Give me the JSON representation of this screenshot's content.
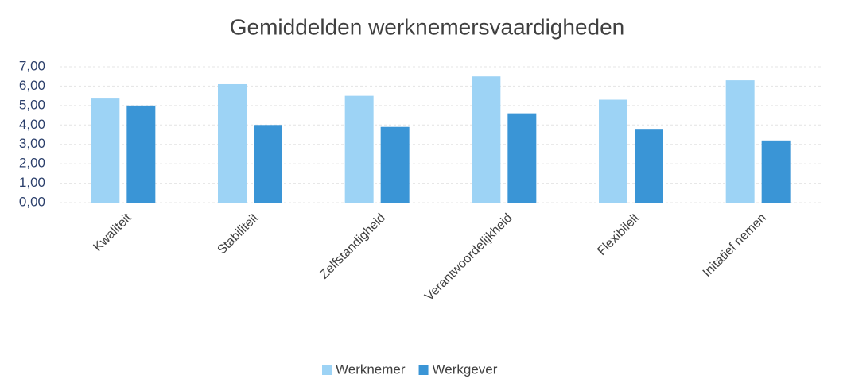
{
  "chart_data": {
    "type": "bar",
    "title": "Gemiddelden werknemersvaardigheden",
    "categories": [
      "Kwaliteit",
      "Stabiliteit",
      "Zelfstandigheid",
      "Verantwoordelijkheid",
      "Flexibileit",
      "Initatief nemen"
    ],
    "series": [
      {
        "name": "Werknemer",
        "color": "#9dd3f5",
        "values": [
          5.4,
          6.1,
          5.5,
          6.5,
          5.3,
          6.3
        ]
      },
      {
        "name": "Werkgever",
        "color": "#3a95d6",
        "values": [
          5.0,
          4.0,
          3.9,
          4.6,
          3.8,
          3.2
        ]
      }
    ],
    "ylim": [
      0,
      7
    ],
    "yticks": [
      {
        "value": 0,
        "label": "0,00"
      },
      {
        "value": 1,
        "label": "1,00"
      },
      {
        "value": 2,
        "label": "2,00"
      },
      {
        "value": 3,
        "label": "3,00"
      },
      {
        "value": 4,
        "label": "4,00"
      },
      {
        "value": 5,
        "label": "5,00"
      },
      {
        "value": 6,
        "label": "6,00"
      },
      {
        "value": 7,
        "label": "7,00"
      }
    ],
    "grid": true,
    "legend": "bottom"
  }
}
